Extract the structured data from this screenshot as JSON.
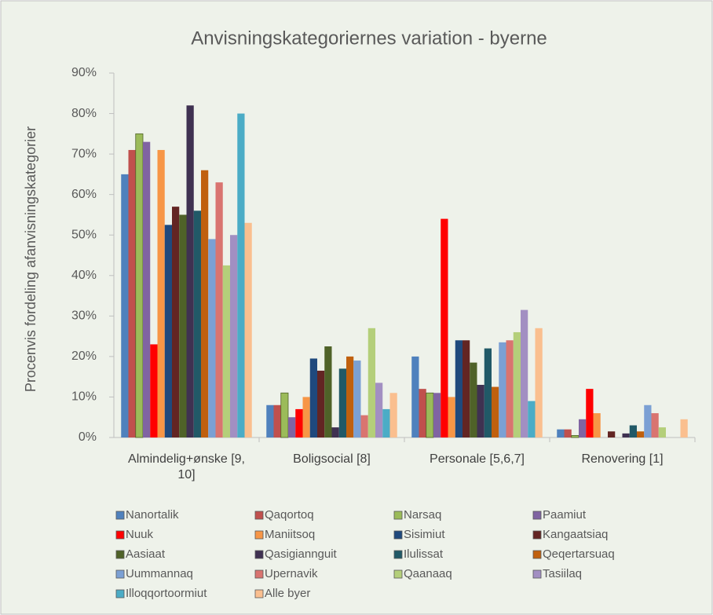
{
  "chart_data": {
    "type": "bar",
    "title": "Anvisningskategoriernes variation - byerne",
    "y_label": "Procenvis fordeling afanvisningskategorier",
    "categories": [
      "Almindelig+ønske [9, 10]",
      "Boligsocial [8]",
      "Personale [5,6,7]",
      "Renovering [1]"
    ],
    "ylim": [
      0,
      90
    ],
    "yticks": [
      {
        "value": 0,
        "label": "0%"
      },
      {
        "value": 10,
        "label": "10%"
      },
      {
        "value": 20,
        "label": "20%"
      },
      {
        "value": 30,
        "label": "30%"
      },
      {
        "value": 40,
        "label": "40%"
      },
      {
        "value": 50,
        "label": "50%"
      },
      {
        "value": 60,
        "label": "60%"
      },
      {
        "value": 70,
        "label": "70%"
      },
      {
        "value": 80,
        "label": "80%"
      },
      {
        "value": 90,
        "label": "90%"
      }
    ],
    "grid": false,
    "legend": "bottom",
    "series": [
      {
        "name": "Nanortalik",
        "color": "#4f81bd",
        "values": [
          65,
          8,
          20,
          2
        ]
      },
      {
        "name": "Qaqortoq",
        "color": "#c0504d",
        "values": [
          71,
          8,
          12,
          2
        ]
      },
      {
        "name": "Narsaq",
        "color": "#9bbb59",
        "values": [
          75,
          11,
          11,
          0.5
        ]
      },
      {
        "name": "Paamiut",
        "color": "#8064a2",
        "values": [
          73,
          5,
          11,
          4.5
        ]
      },
      {
        "name": "Nuuk",
        "color": "#ff0000",
        "values": [
          23,
          7,
          54,
          12
        ]
      },
      {
        "name": "Maniitsoq",
        "color": "#f79646",
        "values": [
          71,
          10,
          10,
          6
        ]
      },
      {
        "name": "Sisimiut",
        "color": "#1f497d",
        "values": [
          52.5,
          19.5,
          24,
          0
        ]
      },
      {
        "name": "Kangaatsiaq",
        "color": "#632523",
        "values": [
          57,
          16.5,
          24,
          1.5
        ]
      },
      {
        "name": "Aasiaat",
        "color": "#4f6228",
        "values": [
          55,
          22.5,
          18.5,
          0
        ]
      },
      {
        "name": "Qasigiannguit",
        "color": "#3f3151",
        "values": [
          82,
          2.5,
          13,
          1
        ]
      },
      {
        "name": "Ilulissat",
        "color": "#215967",
        "values": [
          56,
          17,
          22,
          3
        ]
      },
      {
        "name": "Qeqertarsuaq",
        "color": "#c0600e",
        "values": [
          66,
          20,
          12.5,
          1.5
        ]
      },
      {
        "name": "Uummannaq",
        "color": "#7ba0d4",
        "values": [
          49,
          19,
          23.5,
          8
        ]
      },
      {
        "name": "Upernavik",
        "color": "#d97470",
        "values": [
          63,
          5.5,
          24,
          6
        ]
      },
      {
        "name": "Qaanaaq",
        "color": "#b4cf7a",
        "values": [
          42.5,
          27,
          26,
          2.5
        ]
      },
      {
        "name": "Tasiilaq",
        "color": "#a28fc2",
        "values": [
          50,
          13.5,
          31.5,
          0
        ]
      },
      {
        "name": "Illoqqortoormiut",
        "color": "#4bacc6",
        "values": [
          80,
          7,
          9,
          0
        ]
      },
      {
        "name": "Alle byer",
        "color": "#fabf8f",
        "values": [
          53,
          11,
          27,
          4.5
        ]
      }
    ]
  }
}
